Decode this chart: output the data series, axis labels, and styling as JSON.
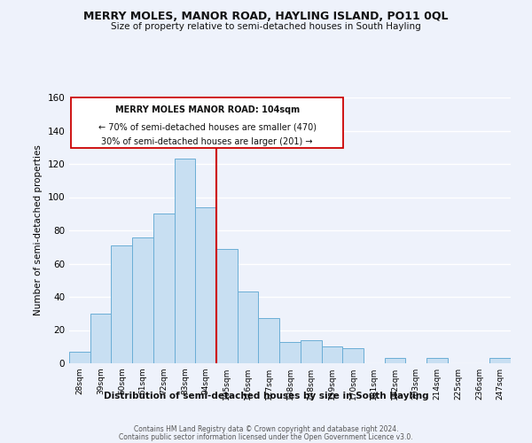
{
  "title": "MERRY MOLES, MANOR ROAD, HAYLING ISLAND, PO11 0QL",
  "subtitle": "Size of property relative to semi-detached houses in South Hayling",
  "xlabel": "Distribution of semi-detached houses by size in South Hayling",
  "ylabel": "Number of semi-detached properties",
  "categories": [
    "28sqm",
    "39sqm",
    "50sqm",
    "61sqm",
    "72sqm",
    "83sqm",
    "94sqm",
    "105sqm",
    "116sqm",
    "127sqm",
    "138sqm",
    "148sqm",
    "159sqm",
    "170sqm",
    "181sqm",
    "192sqm",
    "203sqm",
    "214sqm",
    "225sqm",
    "236sqm",
    "247sqm"
  ],
  "values": [
    7,
    30,
    71,
    76,
    90,
    123,
    94,
    69,
    43,
    27,
    13,
    14,
    10,
    9,
    0,
    3,
    0,
    3,
    0,
    0,
    3
  ],
  "bar_color": "#c8dff2",
  "bar_edge_color": "#6baed6",
  "vline_x_index": 7,
  "vline_color": "#cc0000",
  "annotation_title": "MERRY MOLES MANOR ROAD: 104sqm",
  "annotation_line1": "← 70% of semi-detached houses are smaller (470)",
  "annotation_line2": "30% of semi-detached houses are larger (201) →",
  "annotation_box_color": "#ffffff",
  "annotation_box_edge": "#cc0000",
  "ylim": [
    0,
    160
  ],
  "yticks": [
    0,
    20,
    40,
    60,
    80,
    100,
    120,
    140,
    160
  ],
  "footer1": "Contains HM Land Registry data © Crown copyright and database right 2024.",
  "footer2": "Contains public sector information licensed under the Open Government Licence v3.0.",
  "bg_color": "#eef2fb",
  "grid_color": "#ffffff"
}
